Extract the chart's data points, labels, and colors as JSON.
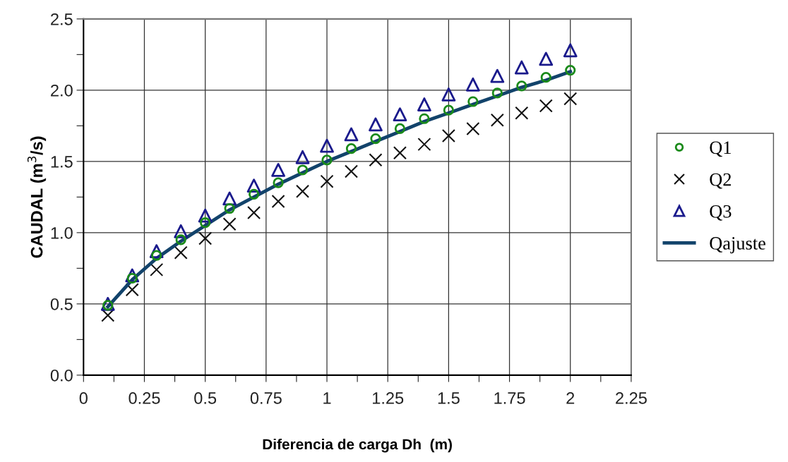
{
  "chart_data": {
    "type": "scatter",
    "xlabel": "Diferencia de carga Dh  (m)",
    "ylabel": "CAUDAL (m$^{3}$/s)",
    "x": [
      0.1,
      0.2,
      0.3,
      0.4,
      0.5,
      0.6,
      0.7,
      0.8,
      0.9,
      1.0,
      1.1,
      1.2,
      1.3,
      1.4,
      1.5,
      1.6,
      1.7,
      1.8,
      1.9,
      2.0
    ],
    "series": [
      {
        "name": "Q1",
        "color": "#1a8a1a",
        "marker": "circle",
        "values": [
          0.49,
          0.68,
          0.84,
          0.95,
          1.07,
          1.17,
          1.27,
          1.35,
          1.44,
          1.51,
          1.59,
          1.66,
          1.73,
          1.8,
          1.86,
          1.92,
          1.98,
          2.03,
          2.09,
          2.14
        ]
      },
      {
        "name": "Q2",
        "color": "#111111",
        "marker": "cross",
        "values": [
          0.42,
          0.6,
          0.74,
          0.86,
          0.96,
          1.06,
          1.14,
          1.22,
          1.29,
          1.36,
          1.43,
          1.51,
          1.56,
          1.62,
          1.68,
          1.73,
          1.79,
          1.84,
          1.89,
          1.94
        ]
      },
      {
        "name": "Q3",
        "color": "#1a1a8c",
        "marker": "triangle",
        "values": [
          0.5,
          0.7,
          0.87,
          1.01,
          1.12,
          1.24,
          1.33,
          1.44,
          1.53,
          1.61,
          1.69,
          1.76,
          1.83,
          1.9,
          1.97,
          2.04,
          2.1,
          2.16,
          2.22,
          2.28
        ]
      },
      {
        "name": "Qajuste",
        "type": "line",
        "color": "#12436b",
        "line_style": "solid",
        "values": [
          0.48,
          0.67,
          0.82,
          0.94,
          1.05,
          1.16,
          1.25,
          1.34,
          1.42,
          1.5,
          1.57,
          1.64,
          1.71,
          1.78,
          1.84,
          1.9,
          1.96,
          2.02,
          2.07,
          2.13
        ]
      }
    ],
    "xlim": [
      0,
      2.25
    ],
    "ylim": [
      0,
      2.5
    ],
    "xticks": [
      0,
      {
        "value": 0.125,
        "label": null
      },
      0.25,
      {
        "value": 0.375,
        "label": null
      },
      0.5,
      {
        "value": 0.625,
        "label": null
      },
      0.75,
      {
        "value": 0.875,
        "label": null
      },
      1,
      {
        "value": 1.125,
        "label": null
      },
      1.25,
      {
        "value": 1.375,
        "label": null
      },
      1.5,
      {
        "value": 1.625,
        "label": null
      },
      1.75,
      {
        "value": 1.875,
        "label": null
      },
      2,
      {
        "value": 2.125,
        "label": null
      },
      2.25
    ],
    "yticks": [
      {
        "value": 0,
        "label": "0.0"
      },
      {
        "value": 0.25,
        "label": null
      },
      {
        "value": 0.5,
        "label": "0.5"
      },
      {
        "value": 0.75,
        "label": null
      },
      {
        "value": 1,
        "label": "1.0"
      },
      {
        "value": 1.25,
        "label": null
      },
      {
        "value": 1.5,
        "label": "1.5"
      },
      {
        "value": 1.75,
        "label": null
      },
      {
        "value": 2,
        "label": "2.0"
      },
      {
        "value": 2.25,
        "label": null
      },
      {
        "value": 2.5,
        "label": "2.5"
      }
    ],
    "grid": true,
    "legend": "right"
  }
}
